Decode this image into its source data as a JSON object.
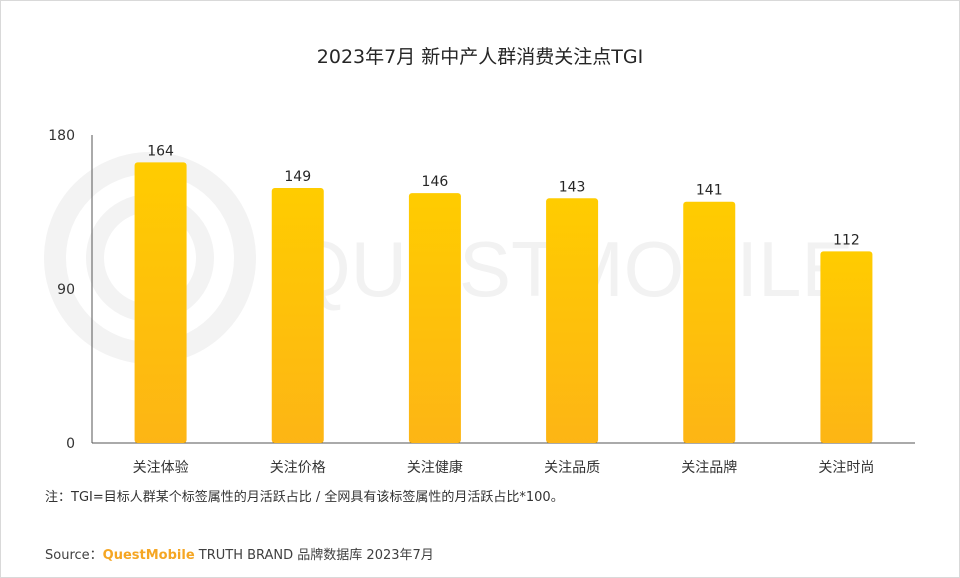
{
  "chart_data": {
    "type": "bar",
    "title": "2023年7月 新中产人群消费关注点TGI",
    "categories": [
      "关注体验",
      "关注价格",
      "关注健康",
      "关注品质",
      "关注品牌",
      "关注时尚"
    ],
    "values": [
      164,
      149,
      146,
      143,
      141,
      112
    ],
    "data_labels": [
      "164",
      "149",
      "146",
      "143",
      "141",
      "112"
    ],
    "ylim": [
      0,
      180
    ],
    "yticks": [
      0,
      90,
      180
    ],
    "ytick_labels": [
      "0",
      "90",
      "180"
    ],
    "xlabel": "",
    "ylabel": "",
    "grid": false,
    "bar_color_top": "#FFCC00",
    "bar_color_bottom": "#FDB515"
  },
  "note": "注：TGI=目标人群某个标签属性的月活跃占比 / 全网具有该标签属性的月活跃占比*100。",
  "source": {
    "prefix": "Source：",
    "brand": "QuestMobile",
    "rest": " TRUTH BRAND 品牌数据库 2023年7月"
  },
  "watermark": "QUESTMOBILE"
}
